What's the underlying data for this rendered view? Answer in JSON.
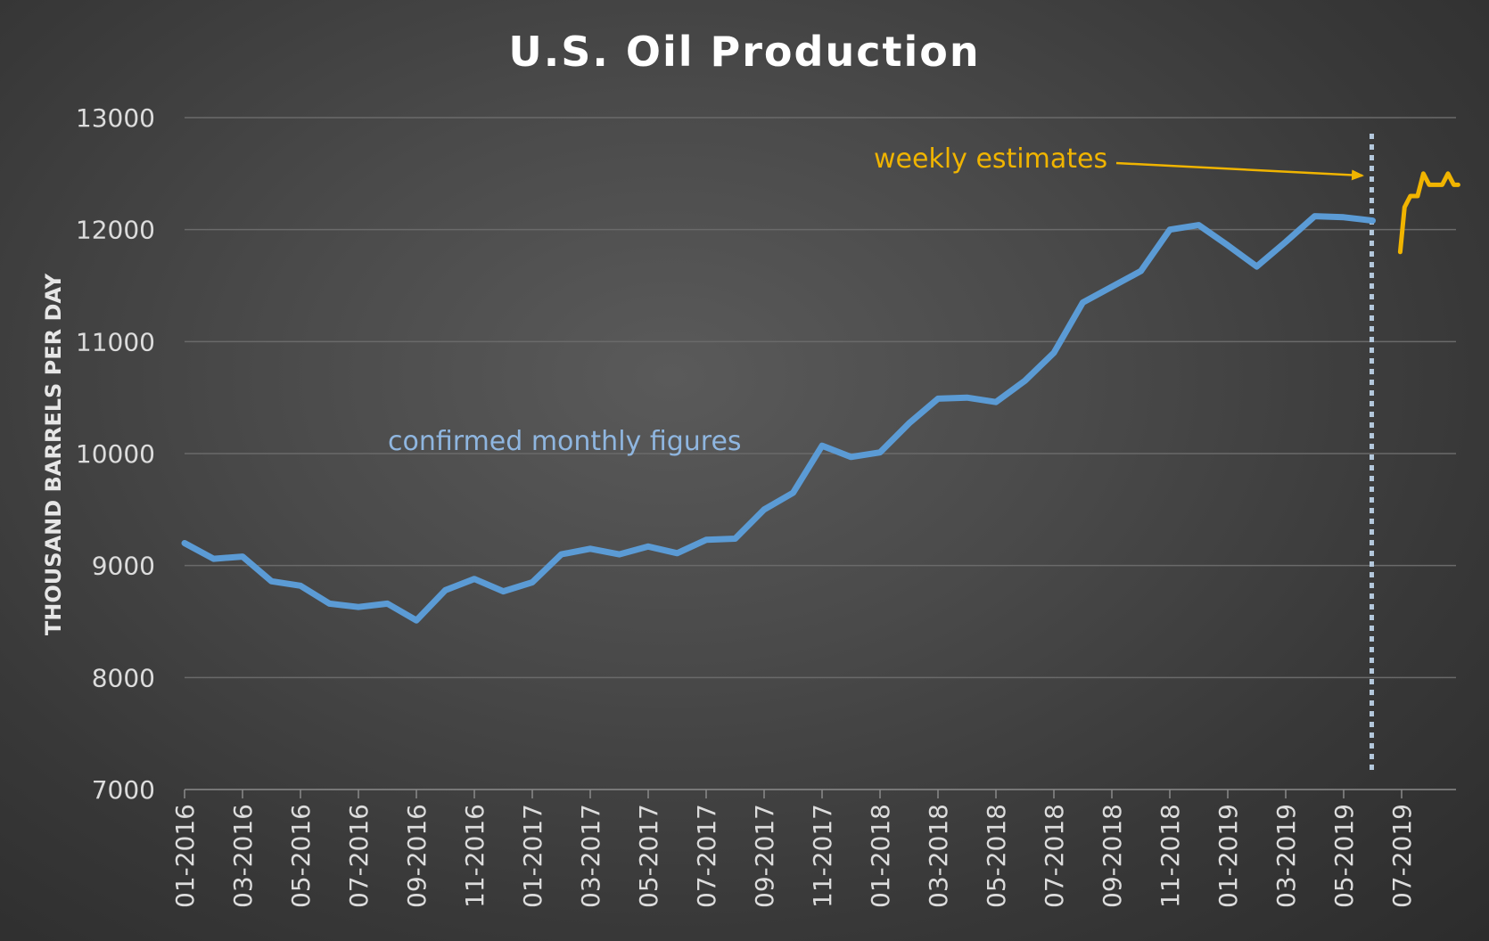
{
  "chart_data": {
    "type": "line",
    "title": "U.S. Oil Production",
    "ylabel": "THOUSAND BARRELS PER DAY",
    "xlabel": "",
    "ylim": [
      7000,
      13000
    ],
    "yticks": [
      7000,
      8000,
      9000,
      10000,
      11000,
      12000,
      13000
    ],
    "grid": "horizontal",
    "xtick_labels": [
      "01-2016",
      "03-2016",
      "05-2016",
      "07-2016",
      "09-2016",
      "11-2016",
      "01-2017",
      "03-2017",
      "05-2017",
      "07-2017",
      "09-2017",
      "11-2017",
      "01-2018",
      "03-2018",
      "05-2018",
      "07-2018",
      "09-2018",
      "11-2018",
      "01-2019",
      "03-2019",
      "05-2019",
      "07-2019"
    ],
    "divider_month": "06-2019",
    "series": [
      {
        "name": "confirmed monthly figures",
        "color": "#5b9bd5",
        "x": [
          "01-2016",
          "02-2016",
          "03-2016",
          "04-2016",
          "05-2016",
          "06-2016",
          "07-2016",
          "08-2016",
          "09-2016",
          "10-2016",
          "11-2016",
          "12-2016",
          "01-2017",
          "02-2017",
          "03-2017",
          "04-2017",
          "05-2017",
          "06-2017",
          "07-2017",
          "08-2017",
          "09-2017",
          "10-2017",
          "11-2017",
          "12-2017",
          "01-2018",
          "02-2018",
          "03-2018",
          "04-2018",
          "05-2018",
          "06-2018",
          "07-2018",
          "08-2018",
          "09-2018",
          "10-2018",
          "11-2018",
          "12-2018",
          "01-2019",
          "02-2019",
          "03-2019",
          "04-2019",
          "05-2019",
          "06-2019"
        ],
        "values": [
          9200,
          9060,
          9080,
          8860,
          8820,
          8660,
          8630,
          8660,
          8510,
          8780,
          8880,
          8770,
          8850,
          9100,
          9150,
          9100,
          9170,
          9110,
          9230,
          9240,
          9500,
          9650,
          10070,
          9970,
          10010,
          10270,
          10490,
          10500,
          10460,
          10650,
          10900,
          11350,
          11490,
          11630,
          12000,
          12040,
          11860,
          11670,
          11890,
          12120,
          12110,
          12080
        ]
      },
      {
        "name": "weekly estimates",
        "color": "#f0b400",
        "x": [
          "06-2019",
          "06-2019",
          "07-2019",
          "07-2019",
          "07-2019",
          "08-2019",
          "08-2019",
          "08-2019",
          "08-2019",
          "09-2019",
          "09-2019"
        ],
        "values": [
          11800,
          12200,
          12300,
          12300,
          12500,
          12400,
          12400,
          12400,
          12500,
          12400,
          12400
        ],
        "month_offsets": [
          0.95,
          1.1,
          1.3,
          1.55,
          1.75,
          1.95,
          2.15,
          2.4,
          2.6,
          2.8,
          2.95
        ]
      }
    ],
    "annotations": {
      "weekly": "weekly estimates",
      "monthly": "confirmed monthly figures"
    },
    "colors": {
      "monthly": "#5b9bd5",
      "weekly": "#f0b400",
      "divider": "#b4c8dc",
      "grid": "#6a6a6a",
      "arrow": "#f0b400"
    }
  }
}
